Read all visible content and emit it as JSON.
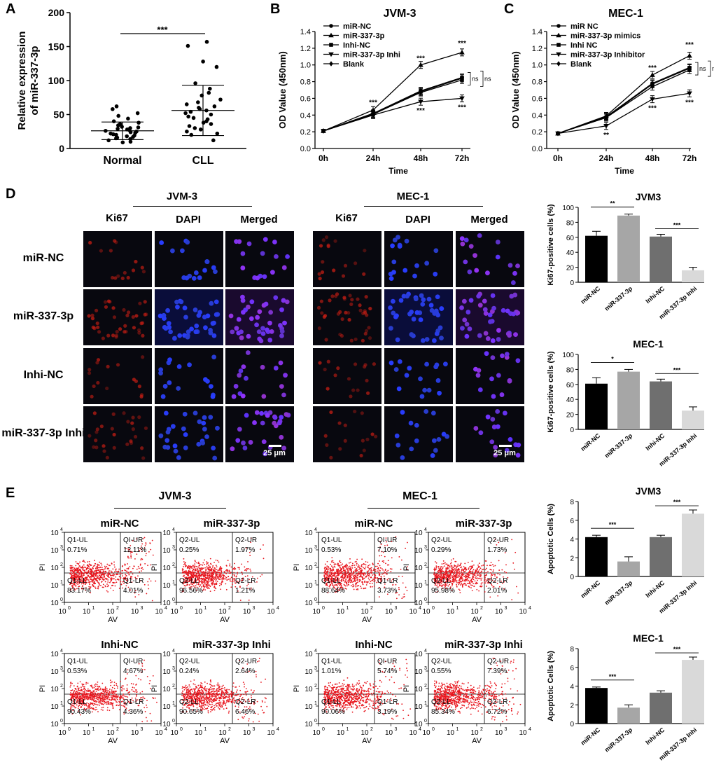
{
  "panels": {
    "A": "A",
    "B": "B",
    "C": "C",
    "D": "D",
    "E": "E"
  },
  "panelA": {
    "ylabel": "Relative expression of miR-337-3p",
    "yticks": [
      "0",
      "50",
      "100",
      "150",
      "200"
    ],
    "groups": [
      "Normal",
      "CLL"
    ],
    "sig": "***"
  },
  "chart_data": [
    {
      "type": "scatter",
      "panel": "A",
      "ylabel": "Relative expression of miR-337-3p",
      "ylim": [
        0,
        200
      ],
      "categories": [
        "Normal",
        "CLL"
      ],
      "series": [
        {
          "name": "Normal",
          "mean": 26,
          "sd": 13,
          "values": [
            62,
            58,
            52,
            48,
            44,
            40,
            38,
            36,
            34,
            32,
            31,
            30,
            29,
            28,
            27,
            26,
            25,
            24,
            23,
            22,
            21,
            20,
            19,
            18,
            17,
            16,
            15,
            14,
            12,
            10,
            9
          ]
        },
        {
          "name": "CLL",
          "mean": 56,
          "sd": 37,
          "values": [
            157,
            151,
            128,
            120,
            96,
            88,
            82,
            78,
            72,
            68,
            65,
            62,
            60,
            58,
            56,
            54,
            52,
            50,
            47,
            45,
            43,
            40,
            38,
            36,
            33,
            30,
            28,
            25,
            22,
            20,
            12
          ]
        }
      ],
      "significance": "***"
    },
    {
      "type": "line",
      "panel": "B",
      "title": "JVM-3",
      "xlabel": "Time",
      "ylabel": "OD Value (450nm)",
      "x": [
        "0h",
        "24h",
        "48h",
        "72h"
      ],
      "ylim": [
        0,
        1.4
      ],
      "yticks": [
        "0.0",
        "0.2",
        "0.4",
        "0.6",
        "0.8",
        "1.0",
        "1.2",
        "1.4"
      ],
      "series": [
        {
          "name": "miR-NC",
          "marker": "circle",
          "values": [
            0.21,
            0.42,
            0.69,
            0.85
          ]
        },
        {
          "name": "miR-337-3p",
          "marker": "triangle-up",
          "values": [
            0.21,
            0.46,
            1.0,
            1.15
          ]
        },
        {
          "name": "Inhi-NC",
          "marker": "square",
          "values": [
            0.21,
            0.41,
            0.68,
            0.84
          ]
        },
        {
          "name": "miR-337-3p Inhi",
          "marker": "triangle-down",
          "values": [
            0.21,
            0.4,
            0.56,
            0.6
          ]
        },
        {
          "name": "Blank",
          "marker": "diamond",
          "values": [
            0.21,
            0.41,
            0.67,
            0.82
          ]
        }
      ],
      "annotations": [
        "***",
        "***",
        "***",
        "***",
        "***",
        "ns",
        "ns"
      ]
    },
    {
      "type": "line",
      "panel": "C",
      "title": "MEC-1",
      "xlabel": "Time",
      "ylabel": "OD Value (450nm)",
      "x": [
        "0h",
        "24h",
        "48h",
        "72h"
      ],
      "ylim": [
        0,
        1.4
      ],
      "yticks": [
        "0.0",
        "0.2",
        "0.4",
        "0.6",
        "0.8",
        "1.0",
        "1.2",
        "1.4"
      ],
      "series": [
        {
          "name": "miR NC",
          "marker": "circle",
          "values": [
            0.18,
            0.38,
            0.78,
            0.97
          ]
        },
        {
          "name": "miR-337-3p mimics",
          "marker": "triangle-up",
          "values": [
            0.18,
            0.39,
            0.88,
            1.11
          ]
        },
        {
          "name": "Inhi NC",
          "marker": "square",
          "values": [
            0.18,
            0.37,
            0.77,
            0.96
          ]
        },
        {
          "name": "miR-337-3p Inhibitor",
          "marker": "triangle-down",
          "values": [
            0.18,
            0.27,
            0.59,
            0.66
          ]
        },
        {
          "name": "Blank",
          "marker": "diamond",
          "values": [
            0.18,
            0.37,
            0.74,
            0.94
          ]
        }
      ],
      "annotations": [
        "**",
        "***",
        "***",
        "***",
        "***",
        "ns",
        "ns"
      ]
    },
    {
      "type": "bar",
      "panel": "D",
      "title": "JVM3",
      "ylabel": "Ki67-positive cells (%)",
      "categories": [
        "miR-NC",
        "miR-337-3p",
        "Inhi-NC",
        "miR-337-3p Inhi"
      ],
      "values": [
        62,
        89,
        61,
        16
      ],
      "errors": [
        6,
        2,
        3,
        4
      ],
      "ylim": [
        0,
        100
      ],
      "yticks": [
        "0",
        "20",
        "40",
        "60",
        "80",
        "100"
      ],
      "colors": [
        "#000000",
        "#a6a6a6",
        "#6f6f6f",
        "#d9d9d9"
      ],
      "significance": [
        "**",
        "***"
      ]
    },
    {
      "type": "bar",
      "panel": "D",
      "title": "MEC-1",
      "ylabel": "Ki67-positive cells (%)",
      "categories": [
        "miR-NC",
        "miR-337-3p",
        "Inhi-NC",
        "miR-337-3p Inhi"
      ],
      "values": [
        61,
        77,
        64,
        25
      ],
      "errors": [
        8,
        3,
        3,
        5
      ],
      "ylim": [
        0,
        100
      ],
      "yticks": [
        "0",
        "20",
        "40",
        "60",
        "80",
        "100"
      ],
      "colors": [
        "#000000",
        "#a6a6a6",
        "#6f6f6f",
        "#d9d9d9"
      ],
      "significance": [
        "*",
        "***"
      ]
    },
    {
      "type": "bar",
      "panel": "E",
      "title": "JVM3",
      "ylabel": "Apoptotic Cells (%)",
      "categories": [
        "miR-NC",
        "miR-337-3p",
        "Inhi-NC",
        "miR-337-3p Inhi"
      ],
      "values": [
        4.2,
        1.6,
        4.2,
        6.7
      ],
      "errors": [
        0.2,
        0.5,
        0.2,
        0.4
      ],
      "ylim": [
        0,
        8
      ],
      "yticks": [
        "0",
        "2",
        "4",
        "6",
        "8"
      ],
      "colors": [
        "#000000",
        "#a6a6a6",
        "#6f6f6f",
        "#d9d9d9"
      ],
      "significance": [
        "***",
        "***"
      ]
    },
    {
      "type": "bar",
      "panel": "E",
      "title": "MEC-1",
      "ylabel": "Apoptotic Cells (%)",
      "categories": [
        "miR-NC",
        "miR-337-3p",
        "Inhi-NC",
        "miR-337-3p Inhi"
      ],
      "values": [
        3.8,
        1.7,
        3.3,
        6.8
      ],
      "errors": [
        0.1,
        0.3,
        0.2,
        0.3
      ],
      "ylim": [
        0,
        8
      ],
      "yticks": [
        "0",
        "2",
        "4",
        "6",
        "8"
      ],
      "colors": [
        "#000000",
        "#a6a6a6",
        "#6f6f6f",
        "#d9d9d9"
      ],
      "significance": [
        "***",
        "***"
      ]
    }
  ],
  "panelD": {
    "jvm_title": "JVM-3",
    "mec_title": "MEC-1",
    "columns": [
      "Ki67",
      "DAPI",
      "Merged"
    ],
    "rows": [
      "miR-NC",
      "miR-337-3p",
      "Inhi-NC",
      "miR-337-3p Inhi"
    ],
    "scale": "25 μm"
  },
  "panelE": {
    "jvm_title": "JVM-3",
    "mec_title": "MEC-1",
    "xlabel": "AV",
    "ylabel": "PI",
    "axis_ticks": [
      "10",
      "0",
      "1",
      "2",
      "3",
      "4"
    ],
    "plots": [
      {
        "title": "miR-NC",
        "UL": "Q1-UL",
        "ULv": "0.71%",
        "UR": "QI-UR",
        "URv": "12.11%",
        "LL": "Q1-LL",
        "LLv": "83.17%",
        "LR": "Q1-LR",
        "LRv": "4.01%"
      },
      {
        "title": "miR-337-3p",
        "UL": "Q2-UL",
        "ULv": "0.25%",
        "UR": "Q2-UR",
        "URv": "1.97%",
        "LL": "Q2-LL",
        "LLv": "96.56%",
        "LR": "Q2-LR",
        "LRv": "1.21%"
      },
      {
        "title": "miR-NC",
        "UL": "Q1-UL",
        "ULv": "0.53%",
        "UR": "QI-UR",
        "URv": "7.10%",
        "LL": "Q1-LL",
        "LLv": "88.64%",
        "LR": "Q1-LR",
        "LRv": "3.73%"
      },
      {
        "title": "miR-337-3p",
        "UL": "Q2-UL",
        "ULv": "0.29%",
        "UR": "Q2-UR",
        "URv": "1.73%",
        "LL": "Q2-LL",
        "LLv": "95.98%",
        "LR": "Q2-LR",
        "LRv": "2.01%"
      },
      {
        "title": "Inhi-NC",
        "UL": "Q1-UL",
        "ULv": "0.53%",
        "UR": "QI-UR",
        "URv": "4.67%",
        "LL": "Q1-LL",
        "LLv": "90.43%",
        "LR": "Q1-LR",
        "LRv": "4.36%"
      },
      {
        "title": "miR-337-3p Inhi",
        "UL": "Q2-UL",
        "ULv": "0.24%",
        "UR": "Q2-UR",
        "URv": "2.64%",
        "LL": "Q2-LL",
        "LLv": "90.65%",
        "LR": "Q2-LR",
        "LRv": "6.46%"
      },
      {
        "title": "Inhi-NC",
        "UL": "Q1-UL",
        "ULv": "1.01%",
        "UR": "QI-UR",
        "URv": "5.74%",
        "LL": "Q1-LL",
        "LLv": "90.06%",
        "LR": "Q1-LR",
        "LRv": "3.19%"
      },
      {
        "title": "miR-337-3p Inhi",
        "UL": "Q2-UL",
        "ULv": "0.55%",
        "UR": "Q2-UR",
        "URv": "7.39%",
        "LL": "Q2-LL",
        "LLv": "85.34%",
        "LR": "Q2-LR",
        "LRv": "6.72%"
      }
    ]
  },
  "colors": {
    "red": "#e8141c",
    "blue": "#1f2cff",
    "dark": "#08080f"
  }
}
